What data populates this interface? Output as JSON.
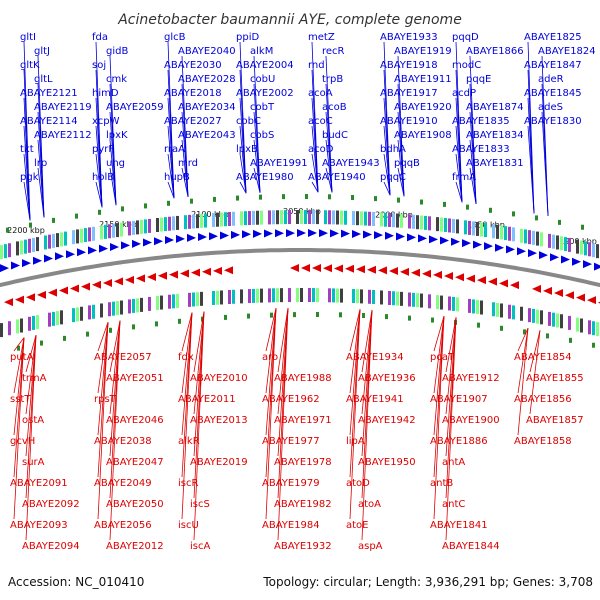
{
  "title": "Acinetobacter baumannii AYE, complete genome",
  "footer": {
    "accession": "Accession: NC_010410",
    "summary": "Topology: circular; Length: 3,936,291 bp; Genes: 3,708"
  },
  "colors": {
    "forward": "#0000dd",
    "reverse": "#dd0000",
    "backbone": "#888888",
    "marker": "#2a8a2a"
  },
  "kbp_labels": [
    "2200 kbp",
    "2150 kbp",
    "2100 kbp",
    "2050 kbp",
    "2000 kbp",
    "1950 kbp",
    "1900 kbp"
  ],
  "forward_genes": [
    "gltI",
    "gltJ",
    "gltK",
    "gltL",
    "ABAYE2121",
    "ABAYE2119",
    "ABAYE2114",
    "ABAYE2112",
    "tkt",
    "lrp",
    "pgk",
    "fda",
    "gidB",
    "soj",
    "cmk",
    "himD",
    "ABAYE2059",
    "xcpW",
    "lpxK",
    "pyrF",
    "ung",
    "holB",
    "glcB",
    "ABAYE2040",
    "ABAYE2030",
    "ABAYE2028",
    "ABAYE2018",
    "ABAYE2034",
    "ABAYE2027",
    "ABAYE2043",
    "rraA",
    "mrd",
    "hupB",
    "ppiD",
    "alkM",
    "ABAYE2004",
    "cobU",
    "ABAYE2002",
    "cobT",
    "cobC",
    "cobS",
    "lpxB",
    "ABAYE1991",
    "ABAYE1980",
    "metZ",
    "recR",
    "rnd",
    "trpB",
    "acoA",
    "acoB",
    "acoC",
    "budC",
    "acoD",
    "ABAYE1943",
    "ABAYE1940",
    "ABAYE1933",
    "ABAYE1919",
    "ABAYE1918",
    "ABAYE1911",
    "ABAYE1917",
    "ABAYE1920",
    "ABAYE1910",
    "ABAYE1908",
    "bdhA",
    "pqqB",
    "pqqC",
    "pqqD",
    "ABAYE1866",
    "modC",
    "pqqE",
    "acdP",
    "ABAYE1874",
    "ABAYE1835",
    "ABAYE1834",
    "ABAYE1833",
    "ABAYE1831",
    "frmA",
    "ABAYE1825",
    "ABAYE1824",
    "ABAYE1847",
    "adeR",
    "ABAYE1845",
    "adeS",
    "ABAYE1830"
  ],
  "reverse_genes": [
    "putA",
    "trmA",
    "sstT",
    "ostA",
    "gcvH",
    "surA",
    "ABAYE2091",
    "ABAYE2092",
    "ABAYE2093",
    "ABAYE2094",
    "ABAYE2057",
    "ABAYE2051",
    "rpsT",
    "ABAYE2046",
    "ABAYE2038",
    "ABAYE2047",
    "ABAYE2049",
    "ABAYE2050",
    "ABAYE2056",
    "ABAYE2012",
    "fdx",
    "ABAYE2010",
    "ABAYE2011",
    "ABAYE2013",
    "alkR",
    "ABAYE2019",
    "iscR",
    "iscS",
    "iscU",
    "iscA",
    "aro",
    "ABAYE1988",
    "ABAYE1962",
    "ABAYE1971",
    "ABAYE1977",
    "ABAYE1978",
    "ABAYE1979",
    "ABAYE1982",
    "ABAYE1984",
    "ABAYE1932",
    "ABAYE1934",
    "ABAYE1936",
    "ABAYE1941",
    "ABAYE1942",
    "lipA",
    "ABAYE1950",
    "atoD",
    "atoA",
    "atoE",
    "aspA",
    "pcaT",
    "ABAYE1912",
    "ABAYE1907",
    "ABAYE1900",
    "ABAYE1886",
    "antA",
    "antB",
    "antC",
    "ABAYE1841",
    "ABAYE1844",
    "ABAYE1854",
    "ABAYE1855",
    "ABAYE1856",
    "ABAYE1857",
    "ABAYE1858"
  ]
}
